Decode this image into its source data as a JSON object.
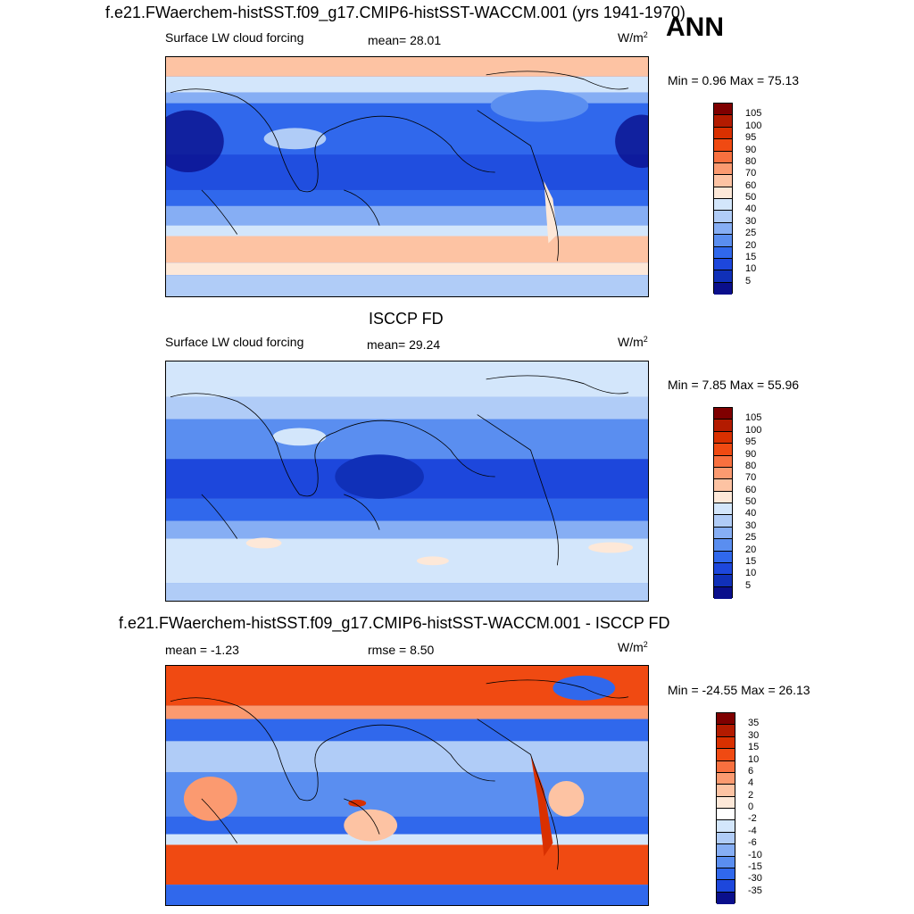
{
  "header": {
    "title": "f.e21.FWaerchem-histSST.f09_g17.CMIP6-histSST-WACCM.001 (yrs 1941-1970)",
    "season": "ANN"
  },
  "panel1": {
    "variable": "Surface LW cloud forcing",
    "mean_text": "mean=  28.01",
    "units": "W/m",
    "units_exp": "2",
    "minmax": "Min =   0.96 Max =  75.13",
    "colorbar": {
      "labels": [
        "105",
        "100",
        "95",
        "90",
        "80",
        "70",
        "60",
        "50",
        "40",
        "30",
        "25",
        "20",
        "15",
        "10",
        "5"
      ],
      "colors": [
        "#7f0000",
        "#b31b00",
        "#d93000",
        "#f04a12",
        "#f8703f",
        "#fb9a70",
        "#fdc3a3",
        "#fde8d8",
        "#d3e6fb",
        "#b0ccf7",
        "#86aef4",
        "#5a8ef0",
        "#3068ec",
        "#1d47dc",
        "#1030b8",
        "#0a0f8c"
      ]
    }
  },
  "panel2": {
    "title": "ISCCP FD",
    "variable": "Surface LW cloud forcing",
    "mean_text": "mean=  29.24",
    "units": "W/m",
    "units_exp": "2",
    "minmax": "Min =   7.85 Max =  55.96",
    "colorbar": {
      "labels": [
        "105",
        "100",
        "95",
        "90",
        "80",
        "70",
        "60",
        "50",
        "40",
        "30",
        "25",
        "20",
        "15",
        "10",
        "5"
      ],
      "colors": [
        "#7f0000",
        "#b31b00",
        "#d93000",
        "#f04a12",
        "#f8703f",
        "#fb9a70",
        "#fdc3a3",
        "#fde8d8",
        "#d3e6fb",
        "#b0ccf7",
        "#86aef4",
        "#5a8ef0",
        "#3068ec",
        "#1d47dc",
        "#1030b8",
        "#0a0f8c"
      ]
    }
  },
  "panel3": {
    "title": "f.e21.FWaerchem-histSST.f09_g17.CMIP6-histSST-WACCM.001 - ISCCP FD",
    "mean_text": "mean =  -1.23",
    "rmse_text": "rmse =   8.50",
    "units": "W/m",
    "units_exp": "2",
    "minmax": "Min = -24.55 Max =  26.13",
    "colorbar": {
      "labels": [
        "35",
        "30",
        "15",
        "10",
        "6",
        "4",
        "2",
        "0",
        "-2",
        "-4",
        "-6",
        "-10",
        "-15",
        "-30",
        "-35"
      ],
      "colors": [
        "#7f0000",
        "#b31b00",
        "#d93000",
        "#f04a12",
        "#f8703f",
        "#fb9a70",
        "#fdc3a3",
        "#fde8d8",
        "#ffffff",
        "#d3e6fb",
        "#b0ccf7",
        "#86aef4",
        "#5a8ef0",
        "#3068ec",
        "#1d47dc",
        "#0a0f8c"
      ]
    }
  }
}
